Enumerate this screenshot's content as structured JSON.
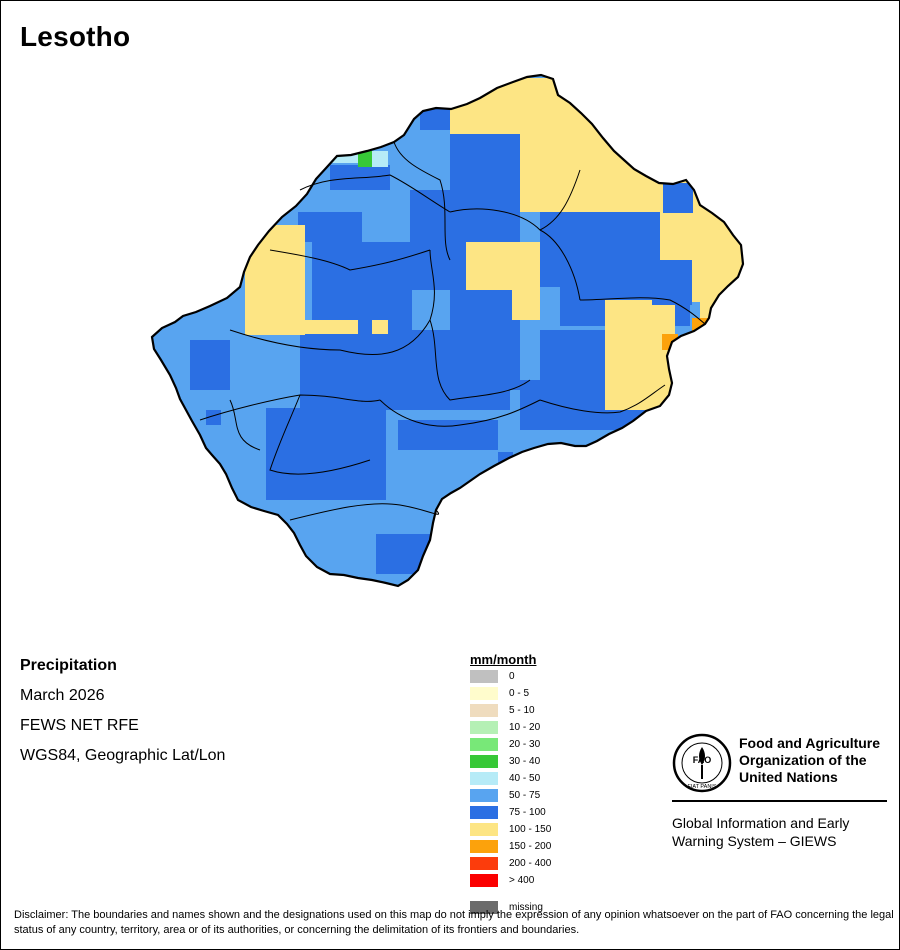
{
  "map": {
    "title": "Lesotho",
    "product": "Precipitation",
    "period": "March 2026",
    "source": "FEWS NET RFE",
    "projection": "WGS84, Geographic Lat/Lon"
  },
  "legend": {
    "title": "mm/month",
    "items": [
      {
        "label": "0",
        "color": "#c0c0c0"
      },
      {
        "label": "0 - 5",
        "color": "#fffccc"
      },
      {
        "label": "5 - 10",
        "color": "#efdcbe"
      },
      {
        "label": "10 - 20",
        "color": "#b5f0b5"
      },
      {
        "label": "20 - 30",
        "color": "#78e878"
      },
      {
        "label": "30 - 40",
        "color": "#37c837"
      },
      {
        "label": "40 - 50",
        "color": "#b6ebf7"
      },
      {
        "label": "50 - 75",
        "color": "#58a4f0"
      },
      {
        "label": "75 - 100",
        "color": "#2b6fe3"
      },
      {
        "label": "100 - 150",
        "color": "#fde584"
      },
      {
        "label": "150 - 200",
        "color": "#fca20c"
      },
      {
        "label": "200 - 400",
        "color": "#fc3c0c"
      },
      {
        "label": "> 400",
        "color": "#fb0000"
      },
      {
        "label": "missing",
        "color": "#6c6c6c"
      }
    ]
  },
  "organization": {
    "logo_text": "FAO",
    "logo_motto": "FIAT PANIS",
    "name_lines": [
      "Food and Agriculture",
      "Organization of the",
      "United Nations"
    ],
    "system_lines": [
      "Global Information and Early",
      "Warning System – GIEWS"
    ]
  },
  "disclaimer": "Disclaimer: The boundaries and names shown and the designations used on this map do not imply the expression of any opinion whatsoever on the part of FAO concerning the legal status of any country, territory, area or of its authorities, or concerning the delimitation of its frontiers and boundaries."
}
